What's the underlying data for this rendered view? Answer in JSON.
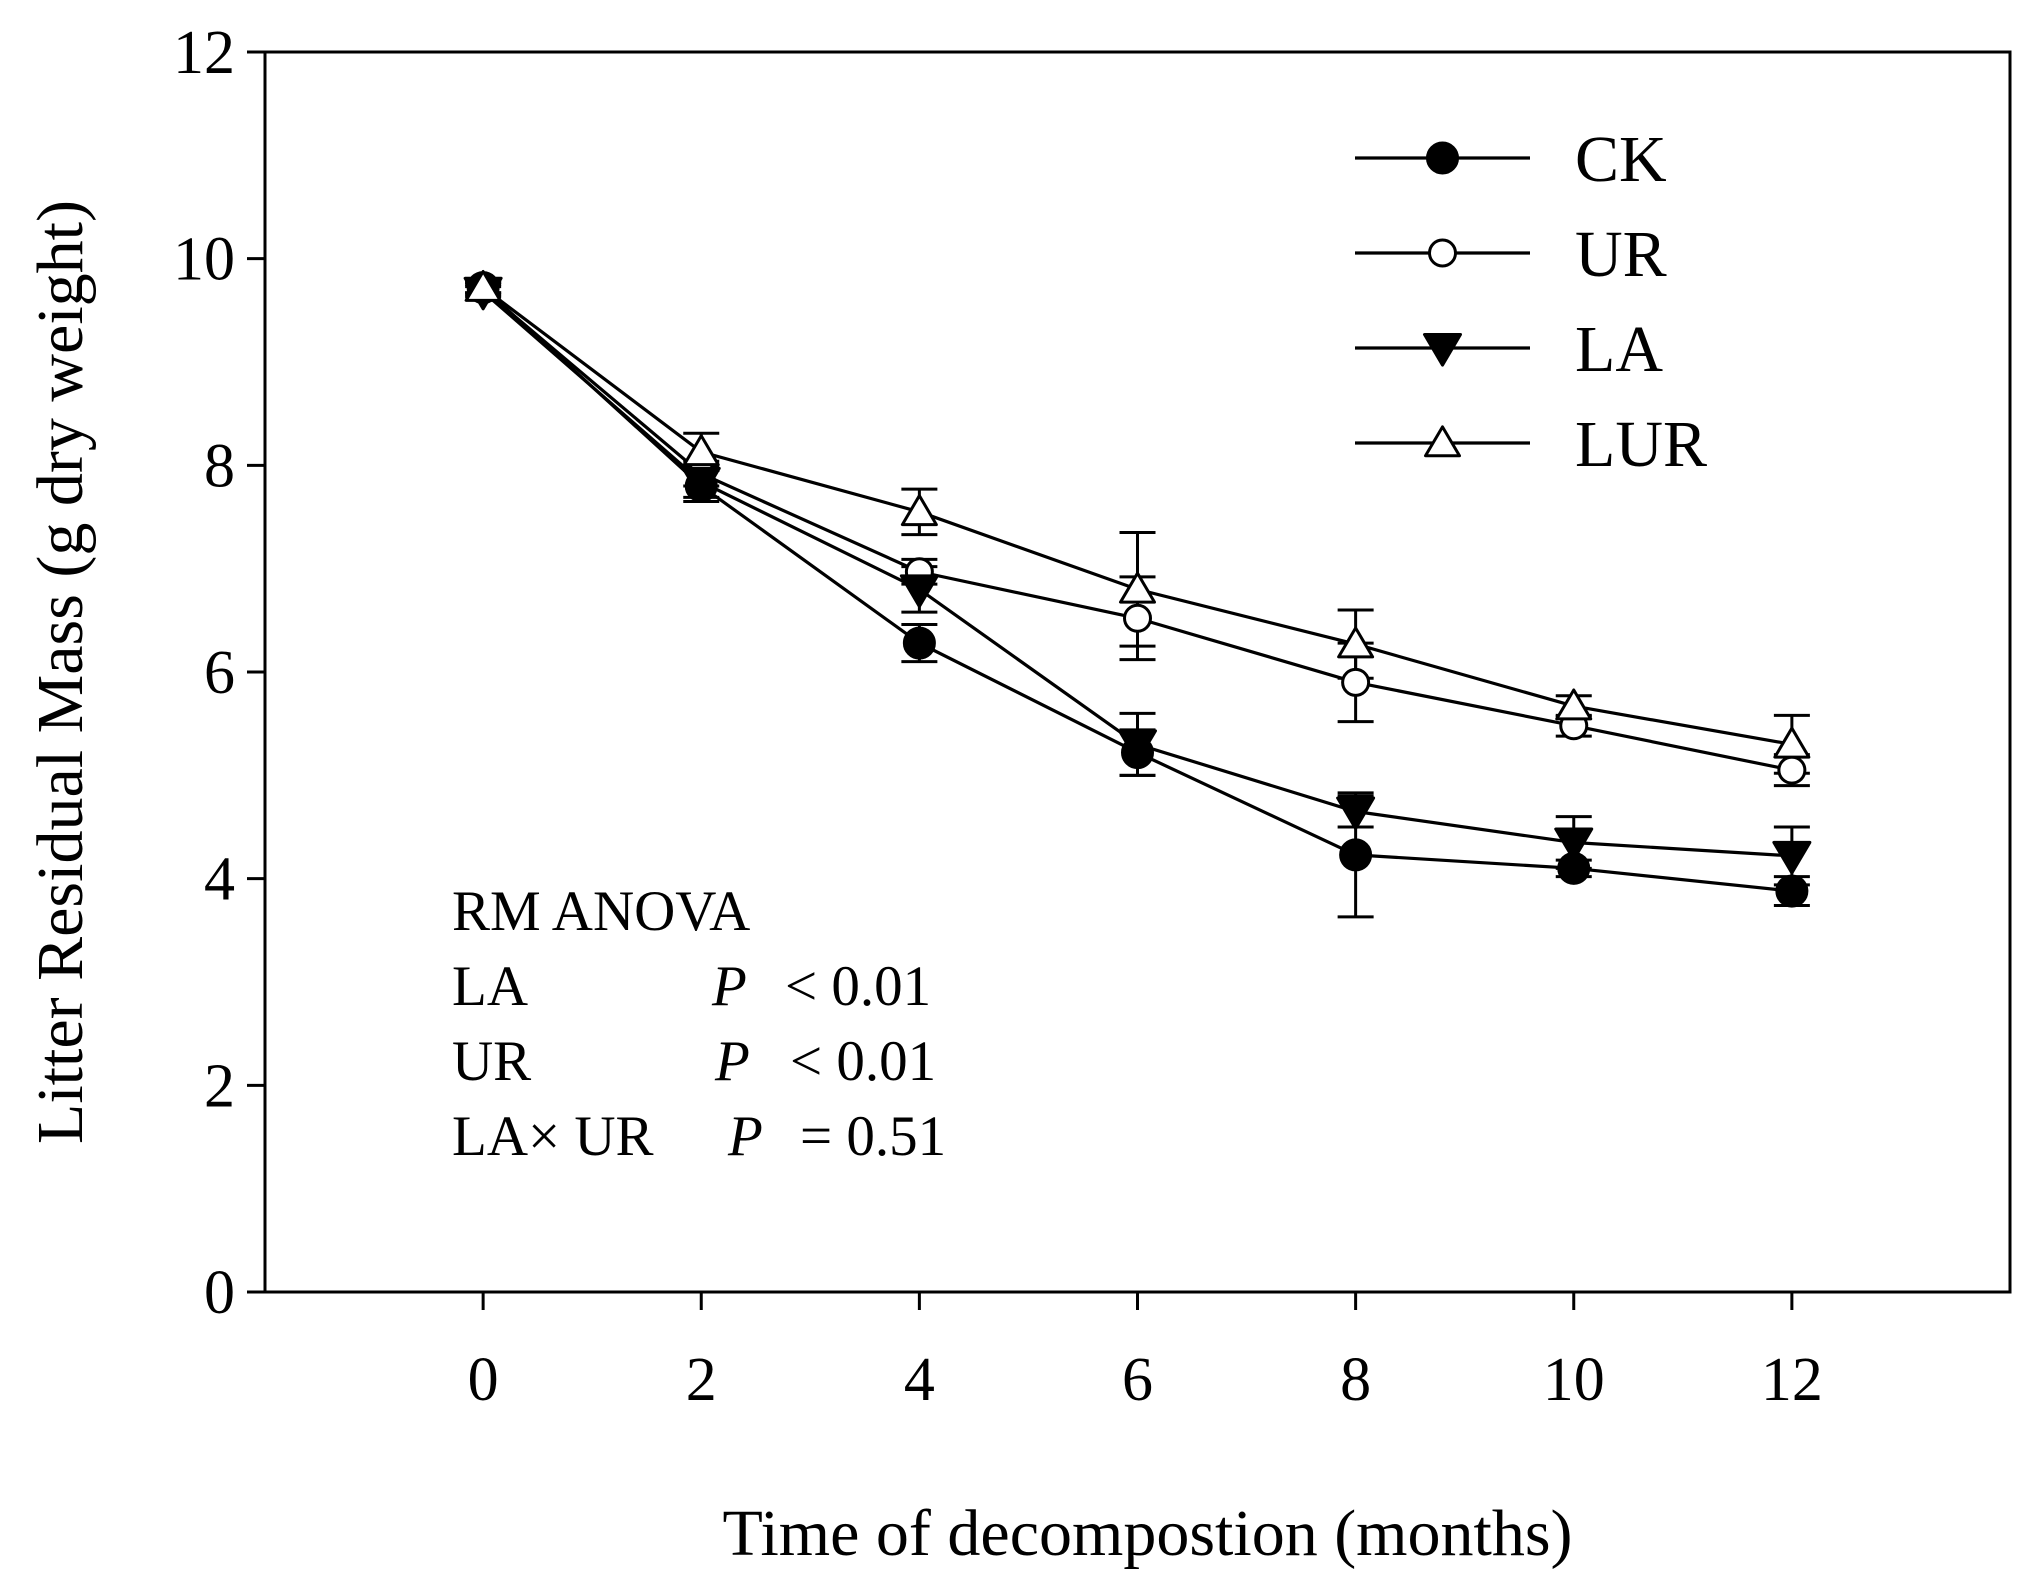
{
  "chart_data": {
    "type": "line",
    "xlabel": "Time of decompostion (months)",
    "ylabel": "Litter Residual Mass (g dry weight)",
    "xlim": [
      -2,
      14
    ],
    "ylim": [
      0,
      12
    ],
    "x_ticks": [
      "0",
      "2",
      "4",
      "6",
      "8",
      "10",
      "12"
    ],
    "y_ticks": [
      "0",
      "2",
      "4",
      "6",
      "8",
      "10",
      "12"
    ],
    "x": [
      0,
      2,
      4,
      6,
      8,
      10,
      12
    ],
    "grid": false,
    "legend_position": "top-right",
    "series": [
      {
        "name": "CK",
        "marker": "filled-circle",
        "values": [
          9.72,
          7.8,
          6.28,
          5.22,
          4.23,
          4.1,
          3.88
        ],
        "errors": [
          0.05,
          0.15,
          0.18,
          0.22,
          0.6,
          0.08,
          0.14
        ]
      },
      {
        "name": "UR",
        "marker": "open-circle",
        "values": [
          9.7,
          7.92,
          6.97,
          6.52,
          5.9,
          5.48,
          5.05
        ],
        "errors": [
          0.05,
          0.12,
          0.12,
          0.4,
          0.38,
          0.1,
          0.15
        ]
      },
      {
        "name": "LA",
        "marker": "filled-triangle-down",
        "values": [
          9.68,
          7.84,
          6.8,
          5.3,
          4.65,
          4.35,
          4.22
        ],
        "errors": [
          0.05,
          0.15,
          0.22,
          0.3,
          0.15,
          0.25,
          0.28
        ]
      },
      {
        "name": "LUR",
        "marker": "open-triangle-up",
        "values": [
          9.72,
          8.13,
          7.55,
          6.8,
          6.27,
          5.67,
          5.3
        ],
        "errors": [
          0.05,
          0.18,
          0.22,
          0.55,
          0.33,
          0.1,
          0.28
        ]
      }
    ],
    "annotation": {
      "title": "RM ANOVA",
      "rows": [
        {
          "factor": "LA",
          "p_label": "P",
          "relation": "<  0.01"
        },
        {
          "factor": "UR",
          "p_label": "P",
          "relation": "< 0.01"
        },
        {
          "factor": "LA× UR",
          "p_label": "P",
          "relation": "=  0.51"
        }
      ]
    }
  }
}
